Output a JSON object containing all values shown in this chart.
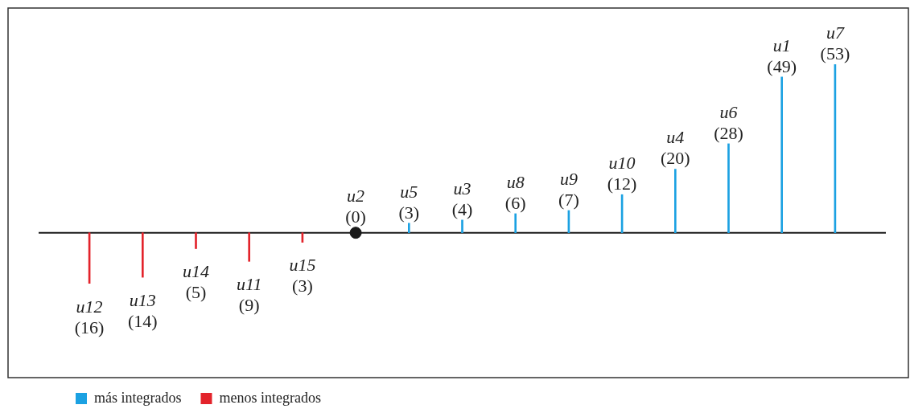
{
  "chart_data": {
    "type": "bar",
    "categories": [
      "u12",
      "u13",
      "u14",
      "u11",
      "u15",
      "u2",
      "u5",
      "u3",
      "u8",
      "u9",
      "u10",
      "u4",
      "u6",
      "u1",
      "u7"
    ],
    "series": [
      {
        "name": "más integrados",
        "color": "#1ba1e2",
        "values": [
          null,
          null,
          null,
          null,
          null,
          null,
          3,
          4,
          6,
          7,
          12,
          20,
          28,
          49,
          53
        ],
        "value_labels": [
          null,
          null,
          null,
          null,
          null,
          null,
          "(3)",
          "(4)",
          "(6)",
          "(7)",
          "(12)",
          "(20)",
          "(28)",
          "(49)",
          "(53)"
        ]
      },
      {
        "name": "menos integrados",
        "color": "#e3232b",
        "values": [
          -16,
          -14,
          -5,
          -9,
          -3,
          null,
          null,
          null,
          null,
          null,
          null,
          null,
          null,
          null,
          null
        ],
        "value_labels": [
          "(16)",
          "(14)",
          "(5)",
          "(9)",
          "(3)",
          null,
          null,
          null,
          null,
          null,
          null,
          null,
          null,
          null,
          null
        ]
      },
      {
        "type": "scatter",
        "color": "#1a1a1a",
        "marker": "circle",
        "x": [
          "u2"
        ],
        "values": [
          0
        ],
        "value_labels": [
          "(0)"
        ]
      }
    ],
    "legend": "bottom left",
    "grid": false,
    "tick_labels": false
  }
}
